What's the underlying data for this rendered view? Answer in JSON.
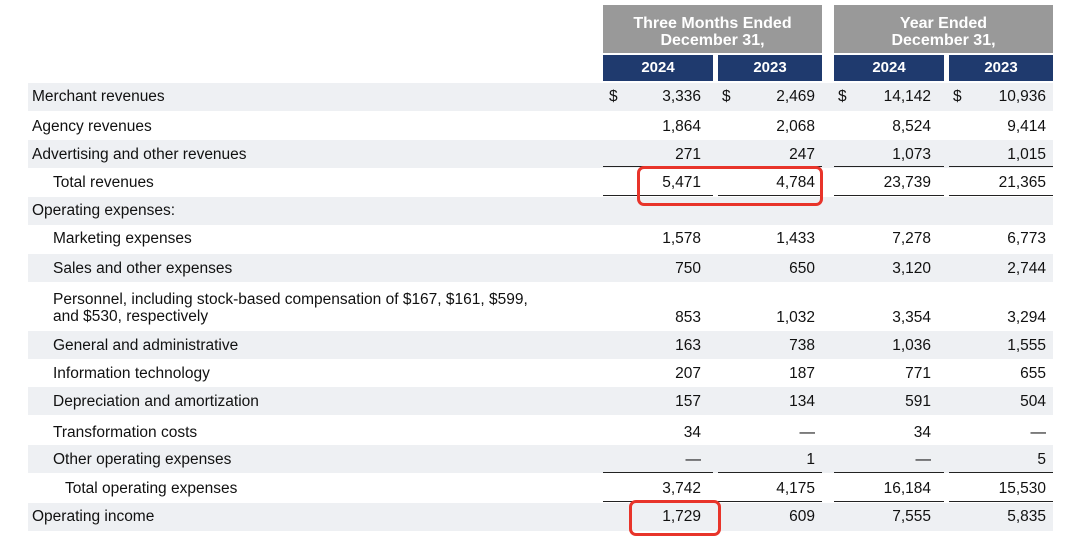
{
  "header": {
    "group1": "Three Months Ended December 31,",
    "group1_line1": "Three Months Ended",
    "group1_line2": "December 31,",
    "group2_line1": "Year Ended",
    "group2_line2": "December 31,",
    "years": [
      "2024",
      "2023",
      "2024",
      "2023"
    ]
  },
  "currency_symbol": "$",
  "rows": [
    {
      "label": "Merchant revenues",
      "values": [
        "3,336",
        "2,469",
        "14,142",
        "10,936"
      ]
    },
    {
      "label": "Agency revenues",
      "values": [
        "1,864",
        "2,068",
        "8,524",
        "9,414"
      ]
    },
    {
      "label": "Advertising and other revenues",
      "values": [
        "271",
        "247",
        "1,073",
        "1,015"
      ]
    },
    {
      "label": "Total revenues",
      "values": [
        "5,471",
        "4,784",
        "23,739",
        "21,365"
      ]
    },
    {
      "label": "Operating expenses:"
    },
    {
      "label": "Marketing expenses",
      "values": [
        "1,578",
        "1,433",
        "7,278",
        "6,773"
      ]
    },
    {
      "label": "Sales and other expenses",
      "values": [
        "750",
        "650",
        "3,120",
        "2,744"
      ]
    },
    {
      "label_line1": "Personnel, including stock-based compensation of $167, $161, $599,",
      "label_line2": "and $530, respectively",
      "values": [
        "853",
        "1,032",
        "3,354",
        "3,294"
      ]
    },
    {
      "label": "General and administrative",
      "values": [
        "163",
        "738",
        "1,036",
        "1,555"
      ]
    },
    {
      "label": "Information technology",
      "values": [
        "207",
        "187",
        "771",
        "655"
      ]
    },
    {
      "label": "Depreciation and amortization",
      "values": [
        "157",
        "134",
        "591",
        "504"
      ]
    },
    {
      "label": "Transformation costs",
      "values": [
        "34",
        "—",
        "34",
        "—"
      ]
    },
    {
      "label": "Other operating expenses",
      "values": [
        "—",
        "1",
        "—",
        "5"
      ]
    },
    {
      "label": "Total operating expenses",
      "values": [
        "3,742",
        "4,175",
        "16,184",
        "15,530"
      ]
    },
    {
      "label": "Operating income",
      "values": [
        "1,729",
        "609",
        "7,555",
        "5,835"
      ]
    }
  ],
  "colors": {
    "header_gray": "#999999",
    "header_navy": "#1f3a6e",
    "highlight": "#e8342a",
    "band": "#eef0f3"
  }
}
